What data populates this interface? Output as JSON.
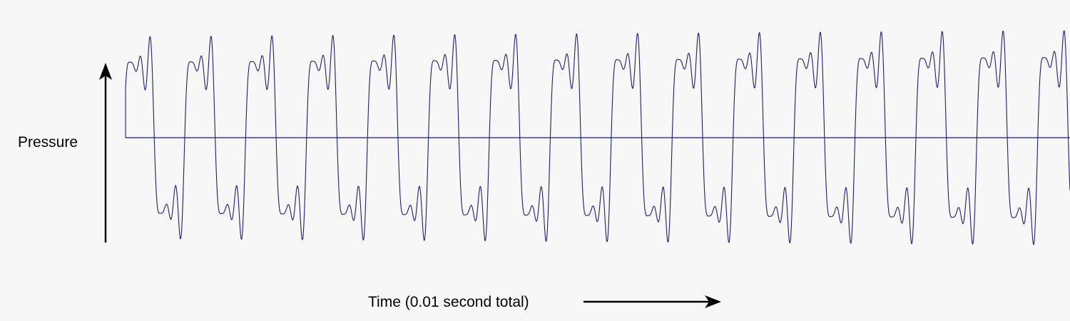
{
  "chart_data": {
    "type": "line",
    "title": "",
    "ylabel": "Pressure",
    "xlabel": "Time (0.01 second total)",
    "x_range": [
      0,
      0.01
    ],
    "y_range": [
      -1,
      1
    ],
    "baseline": 0,
    "grid": false,
    "legend": "none",
    "series": [
      {
        "cycles": 15.5,
        "harmonics": [
          {
            "multiple": 1,
            "amplitude": 0.62,
            "phase": 0.15
          },
          {
            "multiple": 3,
            "amplitude": 0.22,
            "phase": 0.35
          },
          {
            "multiple": 5,
            "amplitude": 0.16,
            "phase": 0.9
          },
          {
            "multiple": 7,
            "amplitude": 0.07,
            "phase": 2.4
          }
        ],
        "amplitude_drift": 0.06
      }
    ],
    "colors": {
      "waveform": "#1e1e6e",
      "baseline": "#1e1e6e",
      "arrows": "#000000",
      "background": "#f7f7f8"
    }
  }
}
